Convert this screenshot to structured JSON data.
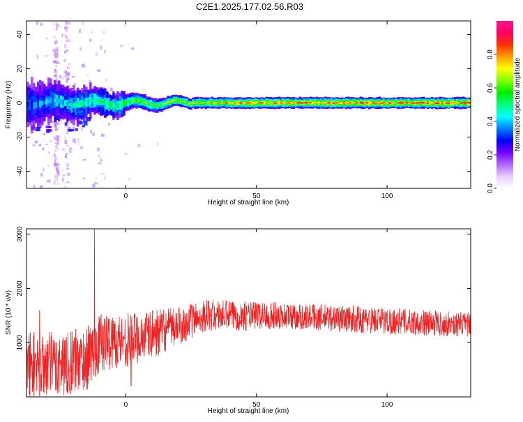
{
  "title": "C2E1.2025.177.02.56.R03",
  "colors": {
    "snr_line": "#ee2222",
    "noise_purple": "#b068ff",
    "band_blue": "#0000ff",
    "band_cyan": "#00ffff",
    "band_green": "#00dd00",
    "band_yellow": "#ffff00",
    "band_red": "#ff0000"
  },
  "chart_data": [
    {
      "type": "heatmap",
      "xlabel": "Height of straight line (km)",
      "ylabel": "Frequency (Hz)",
      "xlim": [
        -38,
        132
      ],
      "ylim": [
        -50,
        48
      ],
      "xticks": [
        0,
        50,
        100
      ],
      "yticks": [
        -40,
        -20,
        0,
        20,
        40
      ],
      "colorbar": {
        "label": "Normalized spectral amplitude",
        "range": [
          0,
          1
        ],
        "ticks": [
          0.0,
          0.2,
          0.4,
          0.6,
          0.8
        ],
        "tick_labels": [
          "0.0",
          "0.2",
          "0.4",
          "0.6",
          "0.8"
        ],
        "colormap": [
          "#ffffff",
          "#e8ccff",
          "#b068ff",
          "#7700ff",
          "#0000ff",
          "#0080ff",
          "#00ffff",
          "#00ff80",
          "#00ee00",
          "#80ff00",
          "#ffff00",
          "#ffa000",
          "#ff3000",
          "#ff0060",
          "#ff1493"
        ]
      },
      "band_profile": [
        {
          "x": -38,
          "half_width_hz": 6,
          "amplitude": 0.3
        },
        {
          "x": -20,
          "half_width_hz": 4,
          "amplitude": 0.45
        },
        {
          "x": 0,
          "half_width_hz": 3,
          "amplitude": 0.6
        },
        {
          "x": 20,
          "half_width_hz": 2,
          "amplitude": 0.75
        },
        {
          "x": 50,
          "half_width_hz": 2,
          "amplitude": 0.9
        },
        {
          "x": 100,
          "half_width_hz": 2,
          "amplitude": 0.95
        },
        {
          "x": 132,
          "half_width_hz": 2,
          "amplitude": 0.95
        }
      ]
    },
    {
      "type": "line",
      "xlabel": "Height of straight line (km)",
      "ylabel": "SNR (10 * v/v)",
      "xlim": [
        -38,
        132
      ],
      "ylim": [
        0,
        3100
      ],
      "xticks": [
        0,
        50,
        100
      ],
      "yticks": [
        1000,
        2000,
        3000
      ],
      "series": [
        {
          "envelope": [
            {
              "x": -38,
              "mean": 600,
              "spread": 650
            },
            {
              "x": -25,
              "mean": 600,
              "spread": 600
            },
            {
              "x": -15,
              "mean": 700,
              "spread": 600
            },
            {
              "x": -10,
              "mean": 1000,
              "spread": 550
            },
            {
              "x": 0,
              "mean": 1050,
              "spread": 500
            },
            {
              "x": 10,
              "mean": 1150,
              "spread": 450
            },
            {
              "x": 20,
              "mean": 1300,
              "spread": 350
            },
            {
              "x": 30,
              "mean": 1500,
              "spread": 300
            },
            {
              "x": 60,
              "mean": 1500,
              "spread": 250
            },
            {
              "x": 100,
              "mean": 1400,
              "spread": 250
            },
            {
              "x": 132,
              "mean": 1330,
              "spread": 220
            }
          ],
          "spikes": [
            {
              "x": -12,
              "value": 3100
            },
            {
              "x": 2,
              "value": 200
            },
            {
              "x": -33,
              "value": 1600
            }
          ]
        }
      ]
    }
  ]
}
